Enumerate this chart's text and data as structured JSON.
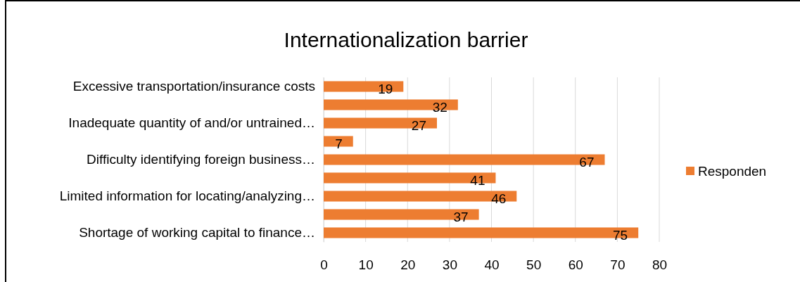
{
  "chart_data": {
    "type": "bar",
    "orientation": "horizontal",
    "title": "Internationalization barrier",
    "categories": [
      "Excessive transportation/insurance costs",
      null,
      "Inadequate quantity of and/or untrained…",
      null,
      "Difficulty identifying foreign business…",
      null,
      "Limited information for locating/analyzing…",
      null,
      "Shortage of working capital to finance…"
    ],
    "series": [
      {
        "name": "Responden",
        "color": "#ed7d31",
        "values": [
          19,
          32,
          27,
          7,
          67,
          41,
          46,
          37,
          75
        ]
      }
    ],
    "xlim": [
      0,
      80
    ],
    "xticks": [
      0,
      10,
      20,
      30,
      40,
      50,
      60,
      70,
      80
    ],
    "grid": "x",
    "legend": "right",
    "data_labels": true
  }
}
